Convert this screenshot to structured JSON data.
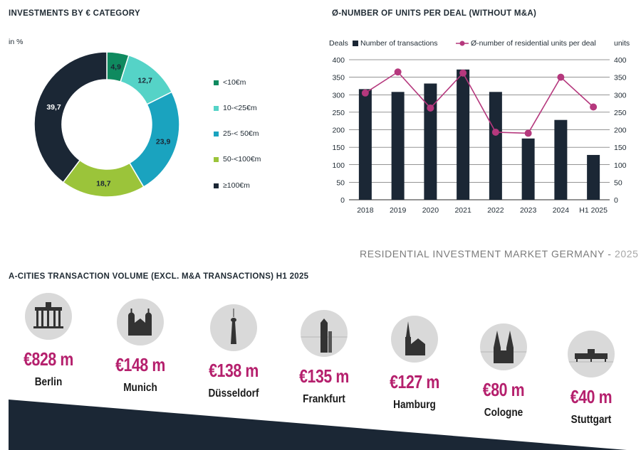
{
  "banner": {
    "text": "RESIDENTIAL INVESTMENT MARKET GERMANY - ",
    "year": "2025"
  },
  "chart_data": [
    {
      "type": "pie",
      "title": "INVESTMENTS BY € CATEGORY",
      "subtitle": "in %",
      "categories": [
        "<10€m",
        "10-<25€m",
        "25-< 50€m",
        "50-<100€m",
        "≥100€m"
      ],
      "values": [
        4.9,
        12.7,
        23.9,
        18.7,
        39.7
      ],
      "value_labels": [
        "4,9",
        "12,7",
        "23,9",
        "18,7",
        "39,7"
      ],
      "colors": [
        "#0f8a5f",
        "#55d3c7",
        "#1aa3bf",
        "#9bc43a",
        "#1b2735"
      ],
      "legend": "right"
    },
    {
      "type": "bar",
      "title": "Ø-NUMBER OF UNITS PER DEAL (WITHOUT M&A)",
      "ylabel": "Deals",
      "y2label": "units",
      "categories": [
        "2018",
        "2019",
        "2020",
        "2021",
        "2022",
        "2023",
        "2024",
        "H1 2025"
      ],
      "ylim": [
        0,
        400
      ],
      "y2lim": [
        0,
        400
      ],
      "yticks": [
        0,
        50,
        100,
        150,
        200,
        250,
        300,
        350,
        400
      ],
      "grid": true,
      "legend": "top",
      "series": [
        {
          "name": "Number of transactions",
          "kind": "bar",
          "color": "#1b2735",
          "values": [
            316,
            308,
            332,
            372,
            308,
            175,
            228,
            128
          ]
        },
        {
          "name": "Ø-number of residential units per deal",
          "kind": "line",
          "color": "#b5387d",
          "values": [
            305,
            365,
            262,
            362,
            193,
            190,
            350,
            265
          ]
        }
      ]
    }
  ],
  "cities": {
    "title": "A-CITIES TRANSACTION VOLUME (EXCL. M&A TRANSACTIONS) H1 2025",
    "items": [
      {
        "icon": "brandenburg-gate-icon",
        "value": "€828 m",
        "name": "Berlin"
      },
      {
        "icon": "frauenkirche-icon",
        "value": "€148 m",
        "name": "Munich"
      },
      {
        "icon": "tv-tower-icon",
        "value": "€138 m",
        "name": "Düsseldorf"
      },
      {
        "icon": "skyscraper-icon",
        "value": "€135 m",
        "name": "Frankfurt"
      },
      {
        "icon": "church-tower-icon",
        "value": "€127 m",
        "name": "Hamburg"
      },
      {
        "icon": "cathedral-icon",
        "value": "€80 m",
        "name": "Cologne"
      },
      {
        "icon": "palace-icon",
        "value": "€40 m",
        "name": "Stuttgart"
      }
    ]
  }
}
